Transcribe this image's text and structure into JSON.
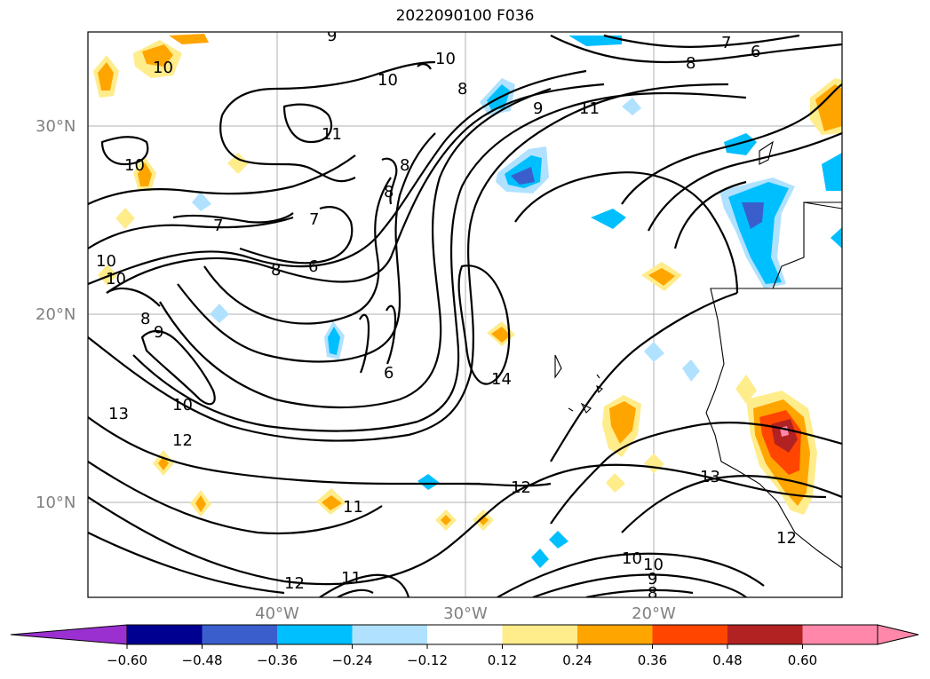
{
  "title": "2022090100 F036",
  "map": {
    "lat_labels": [
      "30°N",
      "20°N",
      "10°N"
    ],
    "lon_labels": [
      "40°W",
      "30°W",
      "20°W"
    ],
    "contour_labels": [
      "9",
      "10",
      "10",
      "10",
      "10",
      "8",
      "7",
      "8",
      "6",
      "11",
      "11",
      "10",
      "8",
      "8",
      "7",
      "7",
      "6",
      "8",
      "10",
      "8",
      "9",
      "6",
      "14",
      "9",
      "10",
      "12",
      "13",
      "12",
      "11",
      "13",
      "12",
      "11",
      "10",
      "10",
      "9",
      "8",
      "12"
    ]
  },
  "colorbar": {
    "ticks": [
      "−0.60",
      "−0.48",
      "−0.36",
      "−0.24",
      "−0.12",
      "0.12",
      "0.24",
      "0.36",
      "0.48",
      "0.60"
    ],
    "colors": [
      "#9b30d0",
      "#000090",
      "#3a5fcd",
      "#00bfff",
      "#b0e2ff",
      "#ffffff",
      "#ffec8b",
      "#ffa500",
      "#ff4500",
      "#b22222",
      "#ff88aa",
      "#ff88aa"
    ],
    "extend": "both"
  }
}
